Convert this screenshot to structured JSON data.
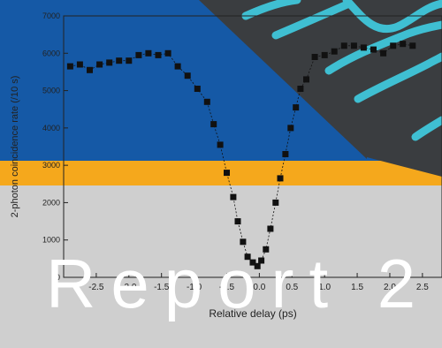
{
  "overlay_text": "Report 2",
  "colors": {
    "blue": "#1559a6",
    "orange": "#f5a81c",
    "gray": "#cfcfcf",
    "dark": "#3a3d40",
    "cyan": "#3fbfd2"
  },
  "chart_data": {
    "type": "scatter",
    "xlabel": "Relative delay (ps)",
    "ylabel": "2-photon coincidence rate (/10 s)",
    "xlim": [
      -3.0,
      2.8
    ],
    "ylim": [
      0,
      7000
    ],
    "xticks": [
      "-2.5",
      "-2.0",
      "-1.5",
      "-1.0",
      "-0.5",
      "0.0",
      "0.5",
      "1.0",
      "1.5",
      "2.0",
      "2.5"
    ],
    "yticks": [
      "0",
      "1000",
      "2000",
      "3000",
      "4000",
      "5000",
      "6000",
      "7000"
    ],
    "series": [
      {
        "x": [
          -2.9,
          -2.75,
          -2.6,
          -2.45,
          -2.3,
          -2.15,
          -2.0,
          -1.85,
          -1.7,
          -1.55,
          -1.4,
          -1.25,
          -1.1,
          -0.95,
          -0.8,
          -0.7,
          -0.6,
          -0.5,
          -0.4,
          -0.33,
          -0.25,
          -0.18,
          -0.1,
          -0.03,
          0.03,
          0.1,
          0.17,
          0.25,
          0.32,
          0.4,
          0.48,
          0.56,
          0.63,
          0.72,
          0.85,
          1.0,
          1.15,
          1.3,
          1.45,
          1.6,
          1.75,
          1.9,
          2.05,
          2.2,
          2.35
        ],
        "y": [
          5650,
          5700,
          5550,
          5700,
          5750,
          5800,
          5800,
          5950,
          6000,
          5950,
          6000,
          5650,
          5400,
          5050,
          4700,
          4100,
          3550,
          2800,
          2150,
          1500,
          950,
          550,
          400,
          300,
          450,
          750,
          1300,
          2000,
          2650,
          3300,
          4000,
          4550,
          5050,
          5300,
          5900,
          5950,
          6050,
          6200,
          6200,
          6150,
          6100,
          6000,
          6200,
          6250,
          6200
        ]
      }
    ]
  }
}
